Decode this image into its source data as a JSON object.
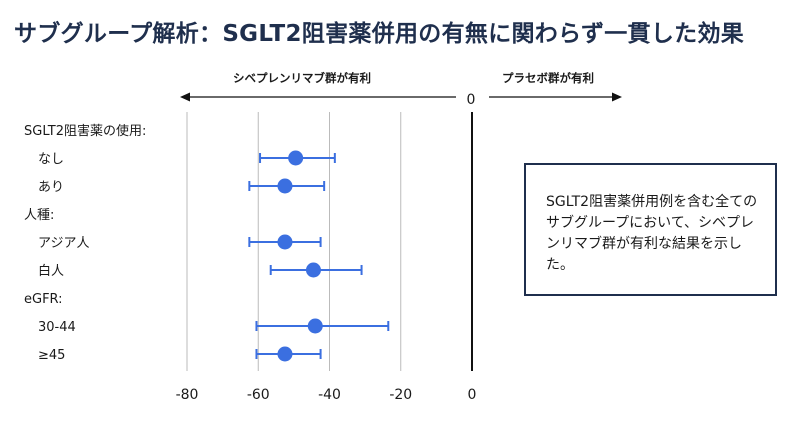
{
  "title": "サブグループ解析：SGLT2阻害薬併用の有無に関わらず一貫した効果",
  "direction": {
    "left_label": "シベプレンリマブ群が有利",
    "right_label": "プラセボ群が有利",
    "zero_label": "0"
  },
  "note": "SGLT2阻害薬併用例を含む全てのサブグループにおいて、シベプレンリマブ群が有利な結果を示した。",
  "colors": {
    "marker": "#3b6fe0",
    "reference": "#111111",
    "grid": "#bbbbbb",
    "note_border": "#1f2f4d"
  },
  "chart_data": {
    "type": "forest",
    "xlim": [
      -80,
      0
    ],
    "xticks": [
      -80,
      -60,
      -40,
      -20,
      0
    ],
    "grid": true,
    "reference_line": 0,
    "rows": [
      {
        "label": "SGLT2阻害薬の使用:",
        "header": true
      },
      {
        "label": "なし",
        "header": false,
        "estimate": -49.5,
        "lower": -59.5,
        "upper": -38.5
      },
      {
        "label": "あり",
        "header": false,
        "estimate": -52.5,
        "lower": -62.5,
        "upper": -41.5
      },
      {
        "label": "人種:",
        "header": true
      },
      {
        "label": "アジア人",
        "header": false,
        "estimate": -52.5,
        "lower": -62.5,
        "upper": -42.5
      },
      {
        "label": "白人",
        "header": false,
        "estimate": -44.5,
        "lower": -56.5,
        "upper": -31.0
      },
      {
        "label": "eGFR:",
        "header": true
      },
      {
        "label": "30-44",
        "header": false,
        "estimate": -44.0,
        "lower": -60.5,
        "upper": -23.5
      },
      {
        "label": "≥45",
        "header": false,
        "estimate": -52.5,
        "lower": -60.5,
        "upper": -42.5
      }
    ]
  }
}
